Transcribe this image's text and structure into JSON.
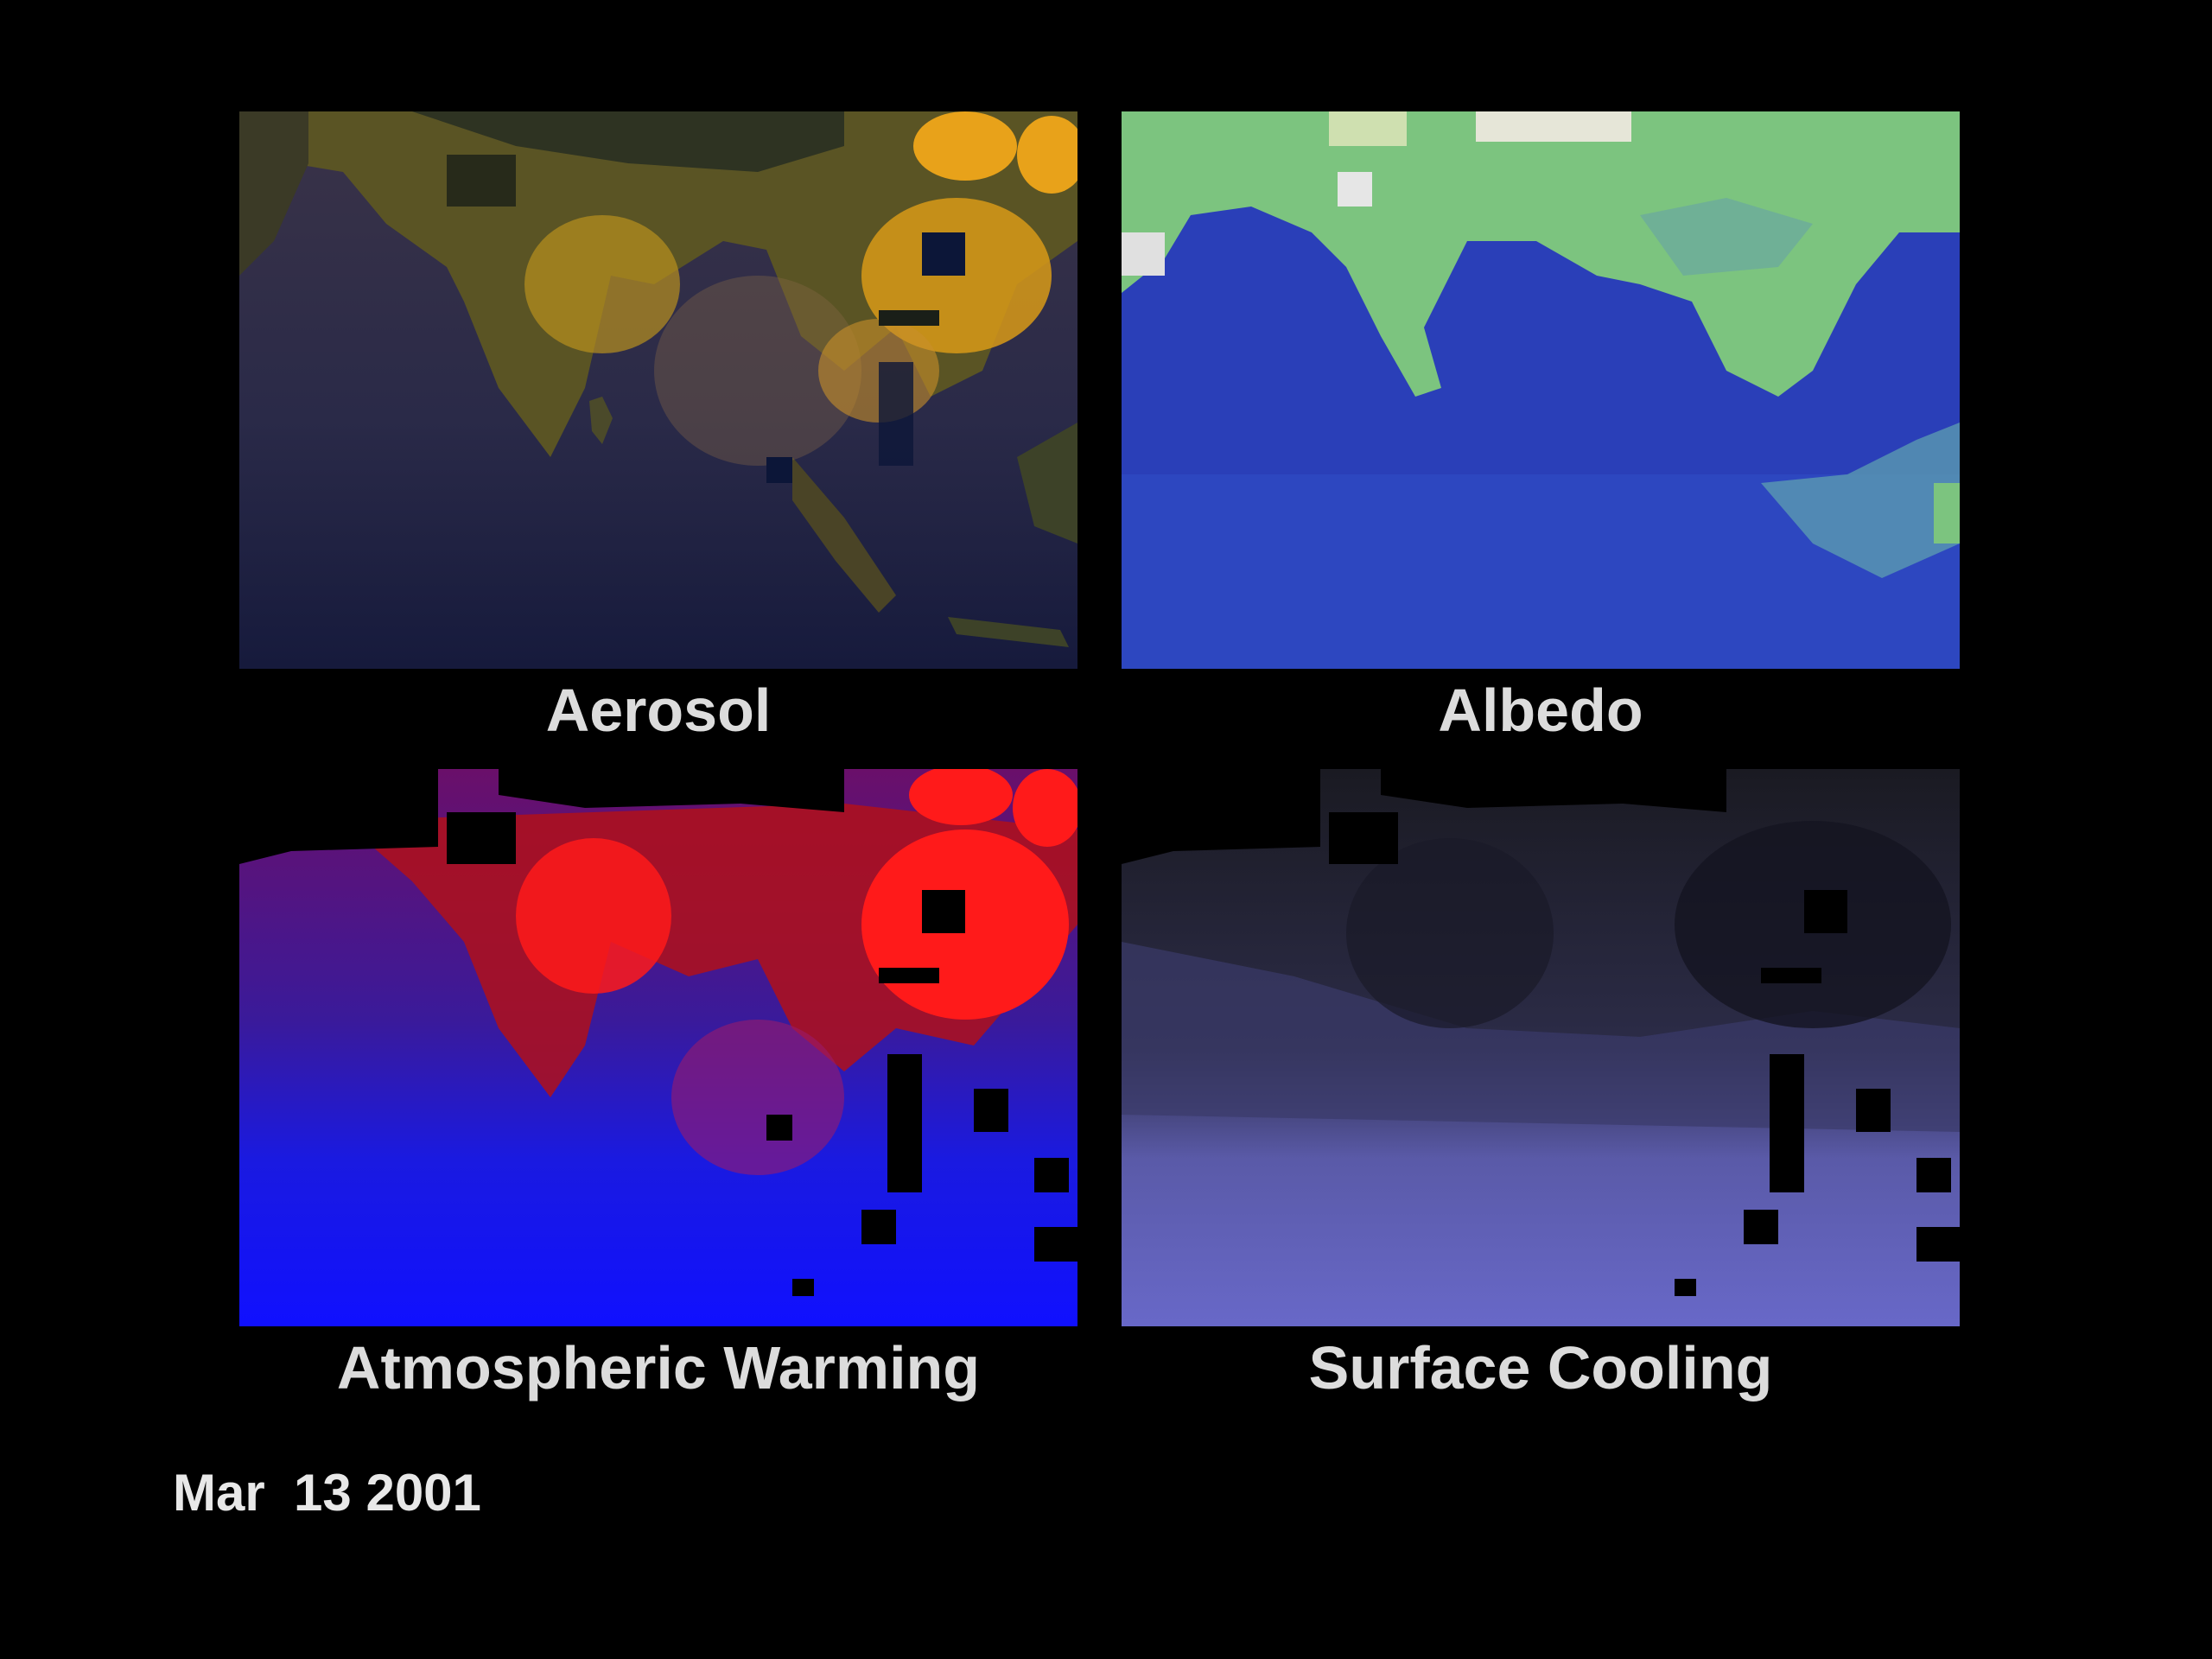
{
  "panels": {
    "aerosol": {
      "label": "Aerosol"
    },
    "albedo": {
      "label": "Albedo"
    },
    "warming": {
      "label": "Atmospheric Warming"
    },
    "cooling": {
      "label": "Surface Cooling"
    }
  },
  "date": "Mar  13 2001",
  "colors": {
    "background": "#000000",
    "ocean_dark": "#1c2045",
    "aerosol_high": "#e8a21a",
    "albedo_ocean": "#2a3fb8",
    "albedo_land": "#7cc47f",
    "albedo_snow": "#e6e6d8",
    "warming_high": "#ff1a1a",
    "warming_low": "#1a1aff",
    "cooling_high": "#7070d8",
    "cooling_low": "#1c1c2e"
  }
}
